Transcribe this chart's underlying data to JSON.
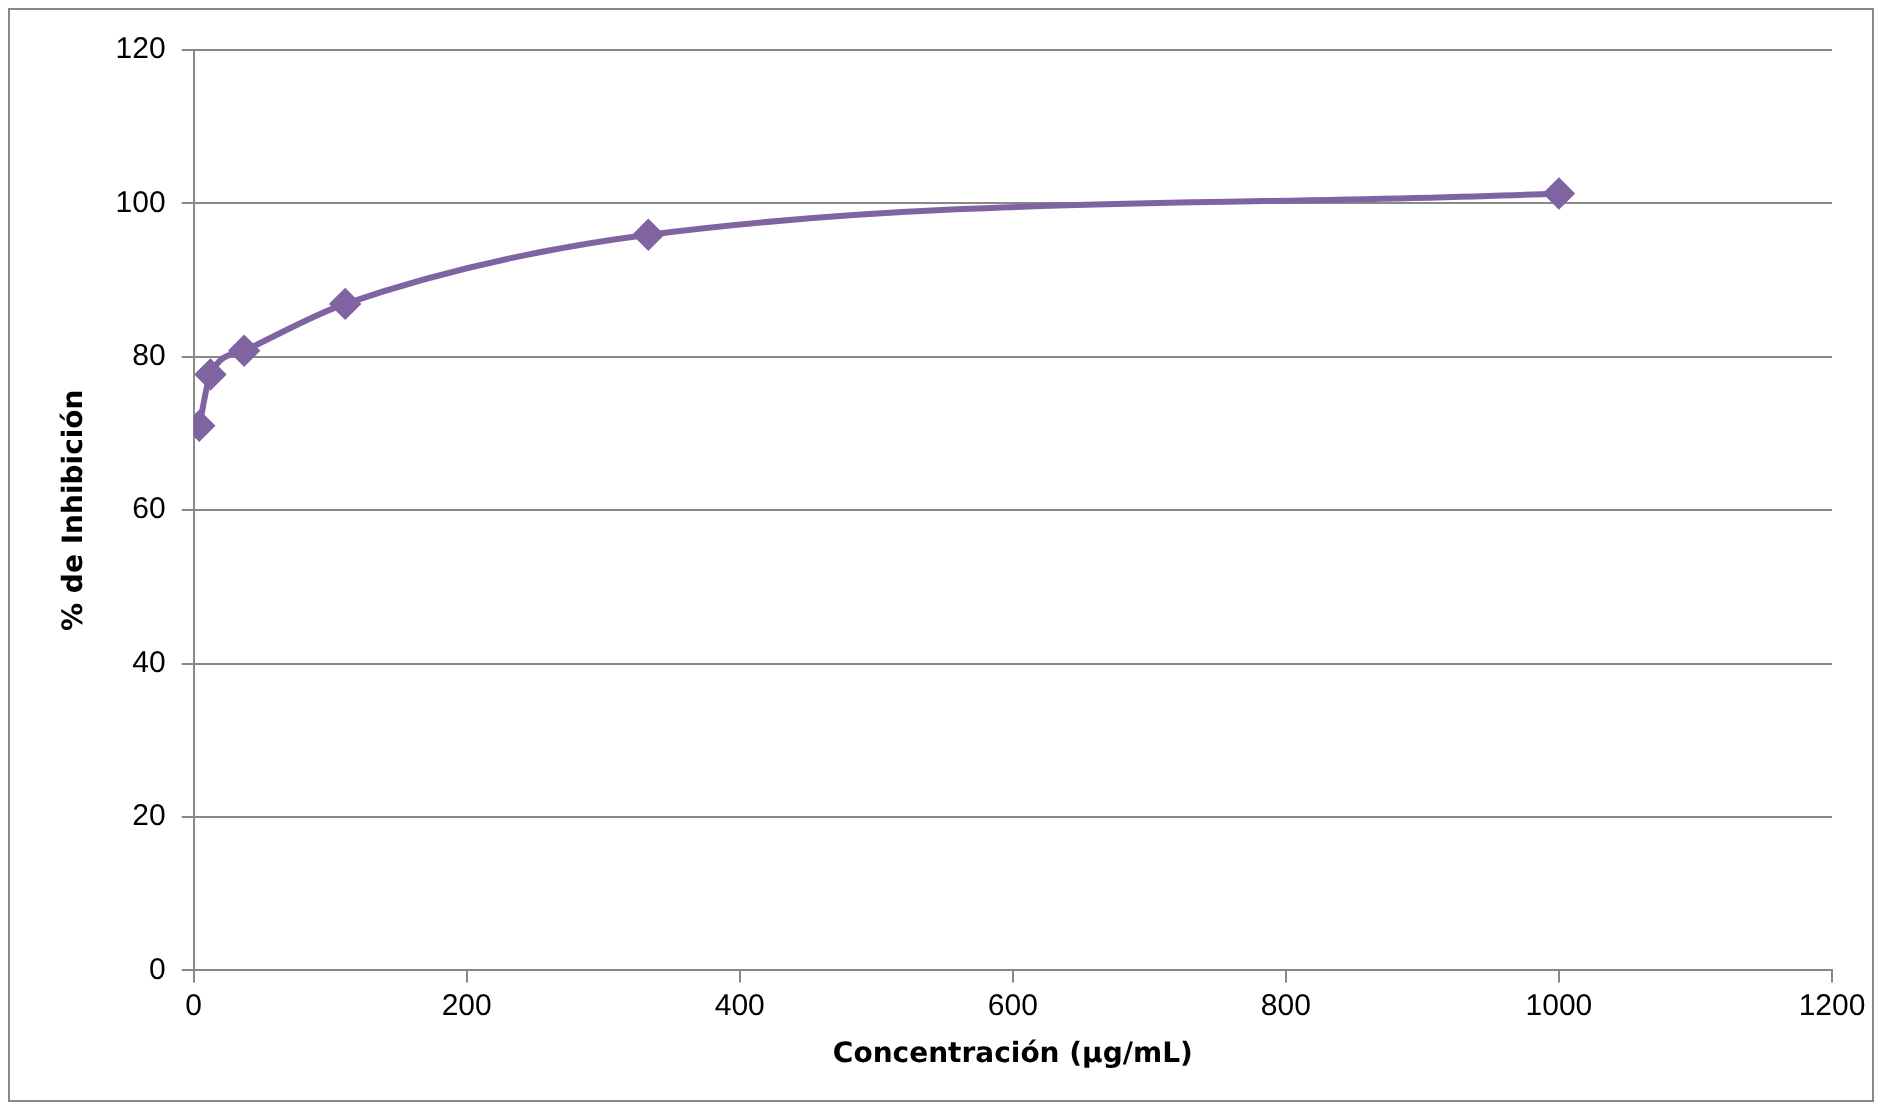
{
  "chart_data": {
    "type": "line",
    "xlabel": "Concentración (µg/mL)",
    "ylabel": "% de Inhibición",
    "x": [
      4.1,
      12.3,
      37,
      111,
      333,
      1000
    ],
    "series": [
      {
        "color": "#8064a2",
        "values": [
          71,
          77.7,
          80.8,
          86.9,
          95.9,
          101.3
        ]
      }
    ],
    "xlim": [
      0,
      1200
    ],
    "xticks": [
      0,
      200,
      400,
      600,
      800,
      1000,
      1200
    ],
    "ylim": [
      0,
      120
    ],
    "yticks": [
      0,
      20,
      40,
      60,
      80,
      100,
      120
    ],
    "grid": "y",
    "legend": false,
    "marker": "diamond",
    "line_style": "solid"
  }
}
